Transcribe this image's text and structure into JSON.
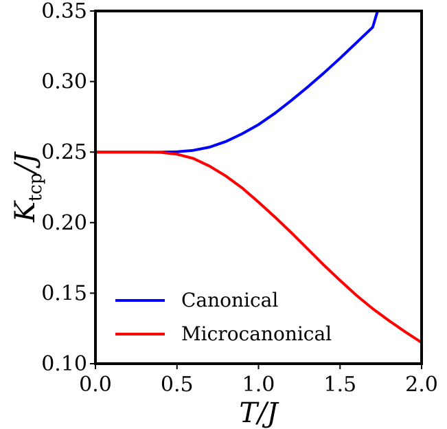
{
  "chart_data": {
    "type": "line",
    "title": "",
    "xlabel": "T/J",
    "ylabel_main": "K",
    "ylabel_sub": "tcp",
    "ylabel_tail": "/J",
    "xlim": [
      0.0,
      2.0
    ],
    "ylim": [
      0.1,
      0.35
    ],
    "xticks": [
      0.0,
      0.5,
      1.0,
      1.5,
      2.0
    ],
    "xtick_labels": [
      "0.0",
      "0.5",
      "1.0",
      "1.5",
      "2.0"
    ],
    "yticks": [
      0.1,
      0.15,
      0.2,
      0.25,
      0.3,
      0.35
    ],
    "ytick_labels": [
      "0.10",
      "0.15",
      "0.20",
      "0.25",
      "0.30",
      "0.35"
    ],
    "grid": false,
    "legend_position": "lower-left",
    "series": [
      {
        "name": "Canonical",
        "color": "#0000ff",
        "x": [
          0.0,
          0.1,
          0.2,
          0.3,
          0.4,
          0.5,
          0.6,
          0.7,
          0.8,
          0.9,
          1.0,
          1.1,
          1.2,
          1.3,
          1.4,
          1.5,
          1.6,
          1.7,
          1.73
        ],
        "y": [
          0.25,
          0.25,
          0.25,
          0.25,
          0.25,
          0.2502,
          0.2512,
          0.2535,
          0.2575,
          0.263,
          0.2695,
          0.2775,
          0.2865,
          0.296,
          0.306,
          0.3165,
          0.3275,
          0.3385,
          0.35
        ]
      },
      {
        "name": "Microcanonical",
        "color": "#ff0000",
        "x": [
          0.0,
          0.1,
          0.2,
          0.3,
          0.4,
          0.5,
          0.6,
          0.7,
          0.8,
          0.9,
          1.0,
          1.1,
          1.2,
          1.3,
          1.4,
          1.5,
          1.6,
          1.7,
          1.8,
          1.9,
          2.0
        ],
        "y": [
          0.25,
          0.25,
          0.25,
          0.25,
          0.2498,
          0.2485,
          0.2455,
          0.24,
          0.233,
          0.2245,
          0.2145,
          0.204,
          0.193,
          0.1815,
          0.17,
          0.159,
          0.1485,
          0.139,
          0.1305,
          0.1225,
          0.115
        ]
      }
    ]
  }
}
